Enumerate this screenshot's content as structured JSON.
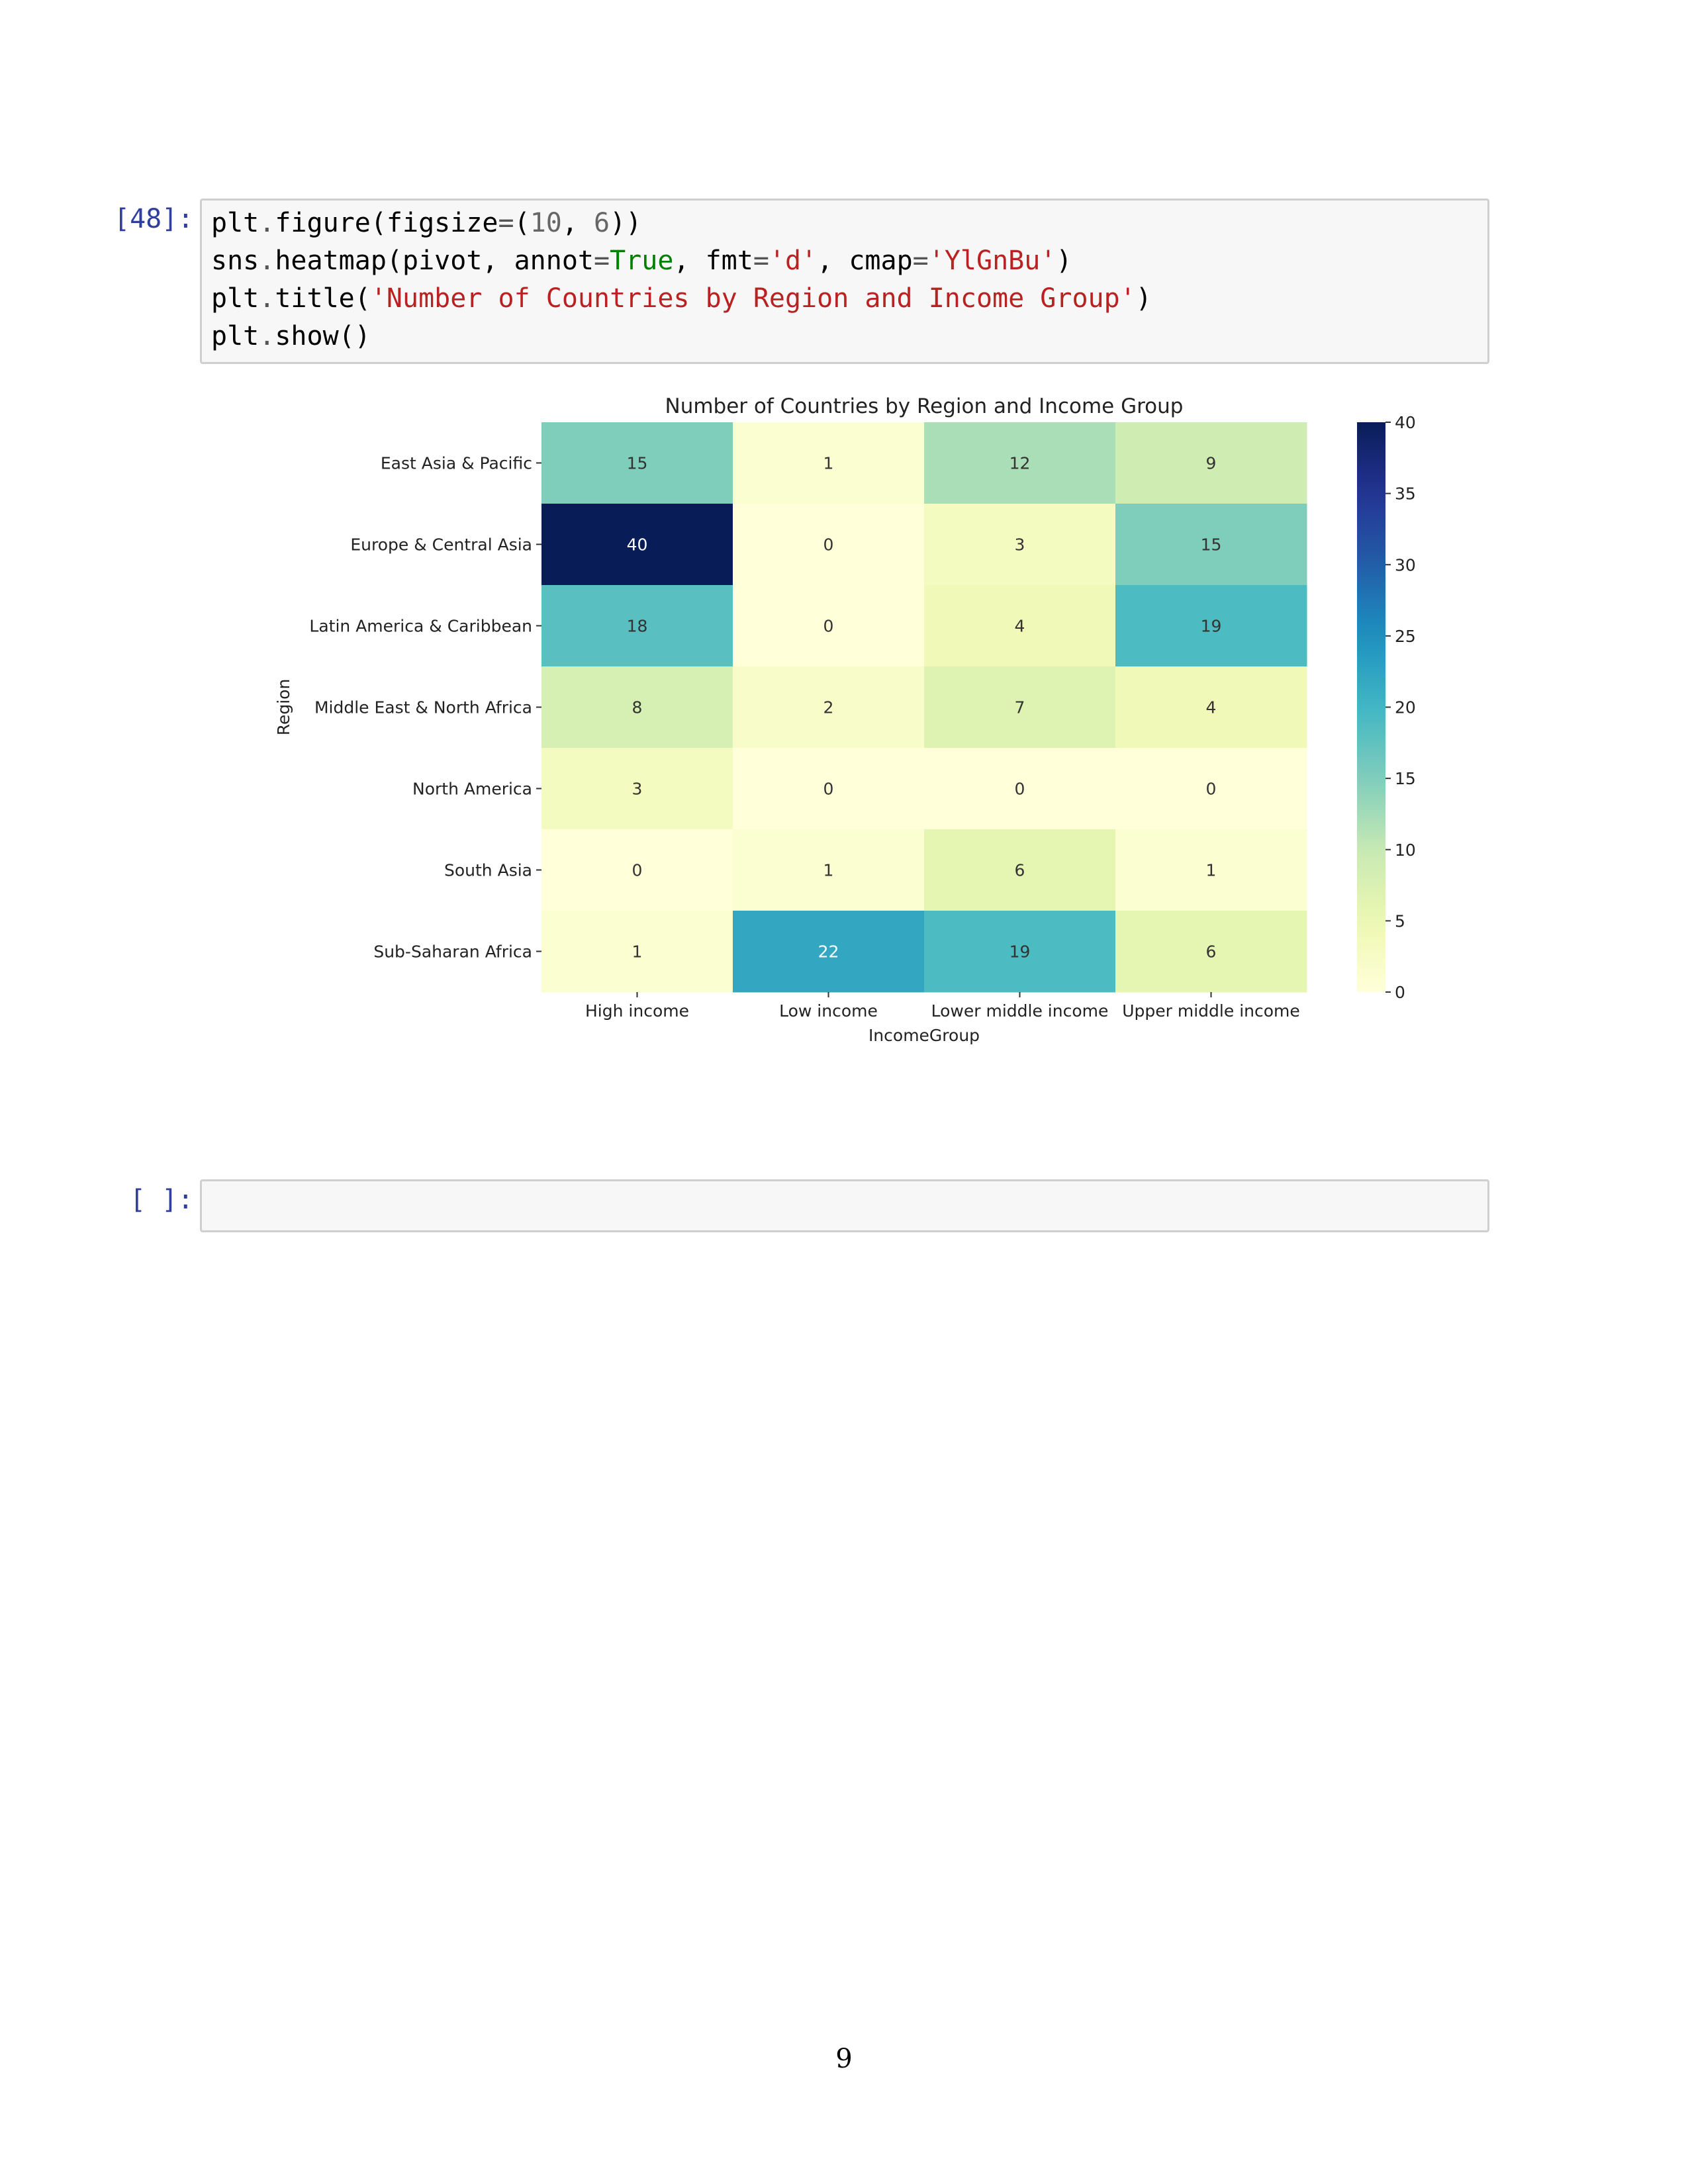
{
  "cells": [
    {
      "prompt": "[48]:",
      "code_lines": [
        [
          {
            "t": "plt",
            "c": "n"
          },
          {
            "t": ".",
            "c": "op"
          },
          {
            "t": "figure(figsize",
            "c": "n"
          },
          {
            "t": "=",
            "c": "op"
          },
          {
            "t": "(",
            "c": "n"
          },
          {
            "t": "10",
            "c": "num"
          },
          {
            "t": ", ",
            "c": "n"
          },
          {
            "t": "6",
            "c": "num"
          },
          {
            "t": "))",
            "c": "n"
          }
        ],
        [
          {
            "t": "sns",
            "c": "n"
          },
          {
            "t": ".",
            "c": "op"
          },
          {
            "t": "heatmap(pivot, annot",
            "c": "n"
          },
          {
            "t": "=",
            "c": "op"
          },
          {
            "t": "True",
            "c": "kw"
          },
          {
            "t": ", fmt",
            "c": "n"
          },
          {
            "t": "=",
            "c": "op"
          },
          {
            "t": "'d'",
            "c": "str"
          },
          {
            "t": ", cmap",
            "c": "n"
          },
          {
            "t": "=",
            "c": "op"
          },
          {
            "t": "'YlGnBu'",
            "c": "str"
          },
          {
            "t": ")",
            "c": "n"
          }
        ],
        [
          {
            "t": "plt",
            "c": "n"
          },
          {
            "t": ".",
            "c": "op"
          },
          {
            "t": "title(",
            "c": "n"
          },
          {
            "t": "'Number of Countries by Region and Income Group'",
            "c": "str"
          },
          {
            "t": ")",
            "c": "n"
          }
        ],
        [
          {
            "t": "plt",
            "c": "n"
          },
          {
            "t": ".",
            "c": "op"
          },
          {
            "t": "show()",
            "c": "n"
          }
        ]
      ]
    },
    {
      "prompt": "[ ]:",
      "code_lines": []
    }
  ],
  "chart_data": {
    "type": "heatmap",
    "title": "Number of Countries by Region and Income Group",
    "xlabel": "IncomeGroup",
    "ylabel": "Region",
    "x_categories": [
      "High income",
      "Low income",
      "Lower middle income",
      "Upper middle income"
    ],
    "y_categories": [
      "East Asia & Pacific",
      "Europe & Central Asia",
      "Latin America & Caribbean",
      "Middle East & North Africa",
      "North America",
      "South Asia",
      "Sub-Saharan Africa"
    ],
    "values": [
      [
        15,
        1,
        12,
        9
      ],
      [
        40,
        0,
        3,
        15
      ],
      [
        18,
        0,
        4,
        19
      ],
      [
        8,
        2,
        7,
        4
      ],
      [
        3,
        0,
        0,
        0
      ],
      [
        0,
        1,
        6,
        1
      ],
      [
        1,
        22,
        19,
        6
      ]
    ],
    "colormap": "YlGnBu",
    "vmin": 0,
    "vmax": 40,
    "colorbar_ticks": [
      0,
      5,
      10,
      15,
      20,
      25,
      30,
      35,
      40
    ],
    "annotated": true
  },
  "page_number": "9"
}
